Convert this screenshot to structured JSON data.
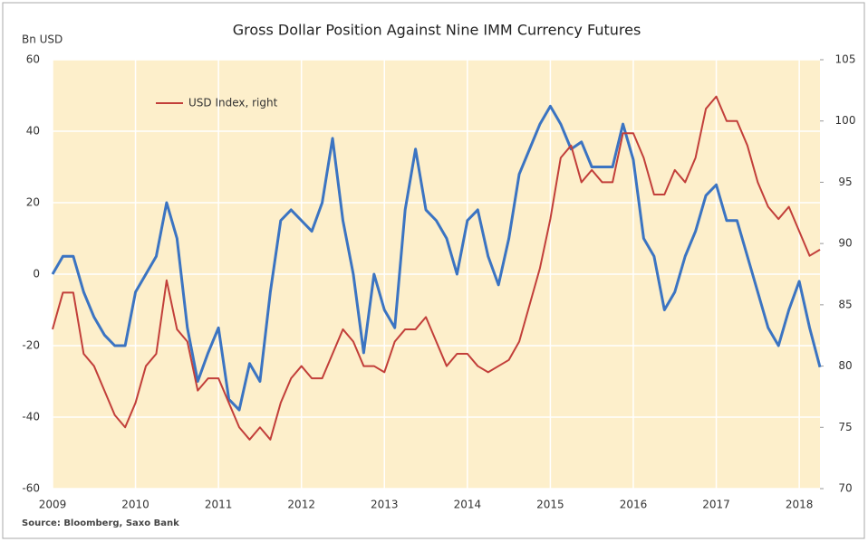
{
  "chart_data": {
    "type": "line",
    "title": "Gross Dollar Position Against Nine IMM Currency Futures",
    "y_label": "Bn USD",
    "source": "Source: Bloomberg, Saxo Bank",
    "x": [
      2009,
      2009.125,
      2009.25,
      2009.375,
      2009.5,
      2009.625,
      2009.75,
      2009.875,
      2010,
      2010.125,
      2010.25,
      2010.375,
      2010.5,
      2010.625,
      2010.75,
      2010.875,
      2011,
      2011.125,
      2011.25,
      2011.375,
      2011.5,
      2011.625,
      2011.75,
      2011.875,
      2012,
      2012.125,
      2012.25,
      2012.375,
      2012.5,
      2012.625,
      2012.75,
      2012.875,
      2013,
      2013.125,
      2013.25,
      2013.375,
      2013.5,
      2013.625,
      2013.75,
      2013.875,
      2014,
      2014.125,
      2014.25,
      2014.375,
      2014.5,
      2014.625,
      2014.75,
      2014.875,
      2015,
      2015.125,
      2015.25,
      2015.375,
      2015.5,
      2015.625,
      2015.75,
      2015.875,
      2016,
      2016.125,
      2016.25,
      2016.375,
      2016.5,
      2016.625,
      2016.75,
      2016.875,
      2017,
      2017.125,
      2017.25,
      2017.375,
      2017.5,
      2017.625,
      2017.75,
      2017.875,
      2018,
      2018.125,
      2018.25
    ],
    "xlim": [
      2009,
      2018.25
    ],
    "xticks": [
      2009,
      2010,
      2011,
      2012,
      2013,
      2014,
      2015,
      2016,
      2017,
      2018
    ],
    "ylim": [
      -60,
      60
    ],
    "yticks": [
      -60,
      -40,
      -20,
      0,
      20,
      40,
      60
    ],
    "y2lim": [
      70,
      105
    ],
    "y2ticks": [
      70,
      75,
      80,
      85,
      90,
      95,
      100,
      105
    ],
    "grid": true,
    "legend": "top-left",
    "series": [
      {
        "color": "#3b74c2",
        "values": [
          0,
          5,
          5,
          -5,
          -12,
          -17,
          -20,
          -20,
          -5,
          0,
          5,
          20,
          10,
          -15,
          -30,
          -22,
          -15,
          -35,
          -38,
          -25,
          -30,
          -5,
          15,
          18,
          15,
          12,
          20,
          38,
          15,
          0,
          -22,
          0,
          -10,
          -15,
          18,
          35,
          18,
          15,
          10,
          0,
          15,
          18,
          5,
          -3,
          10,
          28,
          35,
          42,
          47,
          42,
          35,
          37,
          30,
          30,
          30,
          42,
          32,
          10,
          5,
          -10,
          -5,
          5,
          12,
          22,
          25,
          15,
          15,
          5,
          -5,
          -15,
          -20,
          -10,
          -2,
          -15,
          -26
        ]
      },
      {
        "name": "USD Index, right",
        "color": "#c23f3a",
        "axis": "y2",
        "values": [
          83,
          86,
          86,
          81,
          80,
          78,
          76,
          75,
          77,
          80,
          81,
          87,
          83,
          82,
          78,
          79,
          79,
          77,
          75,
          74,
          75,
          74,
          77,
          79,
          80,
          79,
          79,
          81,
          83,
          82,
          80,
          80,
          79.5,
          82,
          83,
          83,
          84,
          82,
          80,
          81,
          81,
          80,
          79.5,
          80,
          80.5,
          82,
          85,
          88,
          92,
          97,
          98,
          95,
          96,
          95,
          95,
          99,
          99,
          97,
          94,
          94,
          96,
          95,
          97,
          101,
          102,
          100,
          100,
          98,
          95,
          93,
          92,
          93,
          91,
          89,
          89.5
        ]
      }
    ]
  }
}
